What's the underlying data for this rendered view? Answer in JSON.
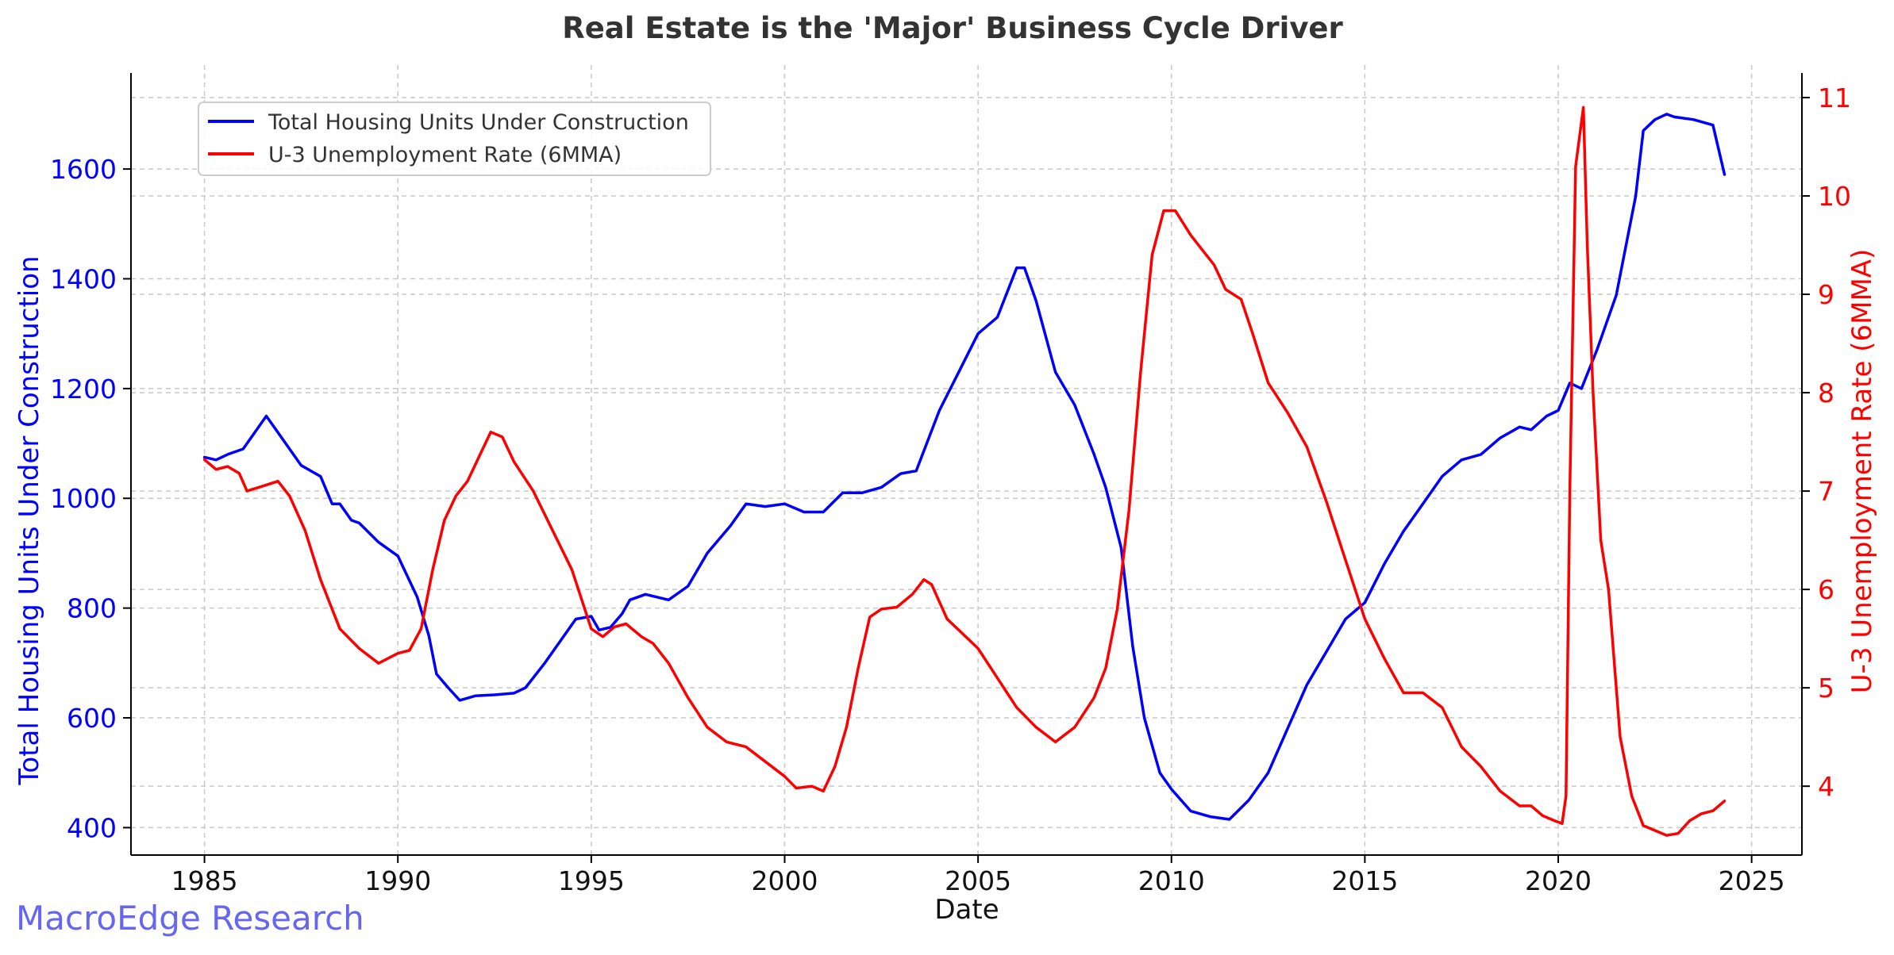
{
  "chart_data": {
    "type": "line",
    "title": "Real Estate is the 'Major' Business Cycle Driver",
    "xlabel": "Date",
    "ylabel_left": "Total Housing Units Under Construction",
    "ylabel_right": "U-3 Unemployment Rate (6MMA)",
    "xlim": [
      1983.1,
      2026.3
    ],
    "ylim_left": [
      350,
      1775
    ],
    "ylim_right": [
      3.3,
      11.25
    ],
    "x_ticks": [
      1985,
      1990,
      1995,
      2000,
      2005,
      2010,
      2015,
      2020,
      2025
    ],
    "y_ticks_left": [
      400,
      600,
      800,
      1000,
      1200,
      1400,
      1600
    ],
    "y_ticks_right": [
      4,
      5,
      6,
      7,
      8,
      9,
      10,
      11
    ],
    "grid": true,
    "legend_position": "top-left",
    "colors": {
      "left": "#0000ff",
      "right": "#ff0000",
      "title": "#333333"
    },
    "series": [
      {
        "name": "Total Housing Units Under Construction",
        "axis": "left",
        "color": "#0000ff",
        "x": [
          1985.0,
          1985.3,
          1985.6,
          1986.0,
          1986.3,
          1986.6,
          1987.0,
          1987.5,
          1988.0,
          1988.3,
          1988.5,
          1988.8,
          1989.0,
          1989.5,
          1990.0,
          1990.5,
          1990.8,
          1991.0,
          1991.3,
          1991.6,
          1992.0,
          1992.5,
          1993.0,
          1993.3,
          1993.8,
          1994.2,
          1994.6,
          1995.0,
          1995.2,
          1995.5,
          1995.8,
          1996.0,
          1996.4,
          1996.7,
          1997.0,
          1997.5,
          1998.0,
          1998.6,
          1999.0,
          1999.5,
          2000.0,
          2000.5,
          2001.0,
          2001.5,
          2002.0,
          2002.5,
          2003.0,
          2003.4,
          2004.0,
          2004.5,
          2005.0,
          2005.5,
          2006.0,
          2006.2,
          2006.5,
          2007.0,
          2007.5,
          2008.0,
          2008.3,
          2008.7,
          2009.0,
          2009.3,
          2009.7,
          2010.0,
          2010.5,
          2011.0,
          2011.5,
          2012.0,
          2012.5,
          2013.0,
          2013.5,
          2014.0,
          2014.5,
          2015.0,
          2015.5,
          2016.0,
          2016.5,
          2017.0,
          2017.5,
          2018.0,
          2018.5,
          2019.0,
          2019.3,
          2019.7,
          2020.0,
          2020.3,
          2020.6,
          2021.0,
          2021.5,
          2022.0,
          2022.2,
          2022.5,
          2022.8,
          2023.0,
          2023.5,
          2024.0,
          2024.3
        ],
        "values": [
          1075,
          1070,
          1080,
          1090,
          1120,
          1150,
          1110,
          1060,
          1040,
          990,
          990,
          960,
          955,
          920,
          895,
          820,
          750,
          680,
          655,
          632,
          640,
          642,
          645,
          655,
          700,
          740,
          780,
          785,
          760,
          765,
          790,
          815,
          825,
          820,
          815,
          840,
          900,
          950,
          990,
          985,
          990,
          975,
          975,
          1010,
          1010,
          1020,
          1045,
          1050,
          1160,
          1230,
          1300,
          1330,
          1420,
          1420,
          1360,
          1230,
          1170,
          1080,
          1020,
          910,
          730,
          600,
          500,
          470,
          430,
          420,
          415,
          450,
          500,
          580,
          660,
          720,
          780,
          810,
          880,
          940,
          990,
          1040,
          1070,
          1080,
          1110,
          1130,
          1125,
          1150,
          1160,
          1210,
          1200,
          1270,
          1370,
          1550,
          1670,
          1690,
          1700,
          1695,
          1690,
          1680,
          1590
        ]
      },
      {
        "name": "U-3 Unemployment Rate (6MMA)",
        "axis": "right",
        "color": "#ff0000",
        "x": [
          1985.0,
          1985.3,
          1985.6,
          1985.9,
          1986.1,
          1986.5,
          1986.9,
          1987.2,
          1987.6,
          1988.0,
          1988.5,
          1989.0,
          1989.5,
          1990.0,
          1990.3,
          1990.6,
          1990.9,
          1991.2,
          1991.5,
          1991.8,
          1992.1,
          1992.4,
          1992.7,
          1993.0,
          1993.5,
          1994.0,
          1994.5,
          1995.0,
          1995.3,
          1995.6,
          1995.9,
          1996.3,
          1996.6,
          1997.0,
          1997.5,
          1998.0,
          1998.5,
          1999.0,
          1999.5,
          2000.0,
          2000.3,
          2000.7,
          2001.0,
          2001.3,
          2001.6,
          2001.9,
          2002.2,
          2002.5,
          2002.9,
          2003.3,
          2003.6,
          2003.8,
          2004.2,
          2004.6,
          2005.0,
          2005.5,
          2006.0,
          2006.5,
          2007.0,
          2007.5,
          2008.0,
          2008.3,
          2008.6,
          2008.9,
          2009.2,
          2009.5,
          2009.8,
          2010.1,
          2010.5,
          2010.8,
          2011.1,
          2011.4,
          2011.8,
          2012.1,
          2012.5,
          2013.0,
          2013.5,
          2014.0,
          2014.5,
          2015.0,
          2015.5,
          2016.0,
          2016.5,
          2017.0,
          2017.5,
          2018.0,
          2018.5,
          2019.0,
          2019.3,
          2019.6,
          2019.9,
          2020.1,
          2020.2,
          2020.3,
          2020.45,
          2020.65,
          2020.75,
          2020.9,
          2021.1,
          2021.3,
          2021.6,
          2021.9,
          2022.2,
          2022.5,
          2022.8,
          2023.1,
          2023.4,
          2023.7,
          2024.0,
          2024.3
        ],
        "values": [
          7.32,
          7.22,
          7.25,
          7.18,
          7.0,
          7.05,
          7.1,
          6.95,
          6.6,
          6.1,
          5.6,
          5.4,
          5.25,
          5.35,
          5.38,
          5.6,
          6.2,
          6.7,
          6.95,
          7.1,
          7.35,
          7.6,
          7.55,
          7.3,
          7.0,
          6.6,
          6.2,
          5.6,
          5.52,
          5.62,
          5.65,
          5.52,
          5.45,
          5.25,
          4.9,
          4.6,
          4.45,
          4.4,
          4.25,
          4.1,
          3.98,
          4.0,
          3.95,
          4.2,
          4.6,
          5.2,
          5.72,
          5.8,
          5.82,
          5.95,
          6.1,
          6.05,
          5.7,
          5.55,
          5.4,
          5.1,
          4.8,
          4.6,
          4.45,
          4.6,
          4.9,
          5.2,
          5.8,
          6.8,
          8.2,
          9.4,
          9.85,
          9.85,
          9.6,
          9.45,
          9.3,
          9.05,
          8.95,
          8.6,
          8.1,
          7.8,
          7.45,
          6.9,
          6.3,
          5.7,
          5.3,
          4.95,
          4.95,
          4.8,
          4.4,
          4.2,
          3.95,
          3.8,
          3.8,
          3.7,
          3.65,
          3.62,
          3.9,
          7.0,
          10.3,
          10.9,
          9.5,
          8.0,
          6.5,
          6.0,
          4.5,
          3.9,
          3.6,
          3.55,
          3.5,
          3.52,
          3.65,
          3.72,
          3.75,
          3.85
        ]
      }
    ]
  },
  "watermark": "MacroEdge Research"
}
